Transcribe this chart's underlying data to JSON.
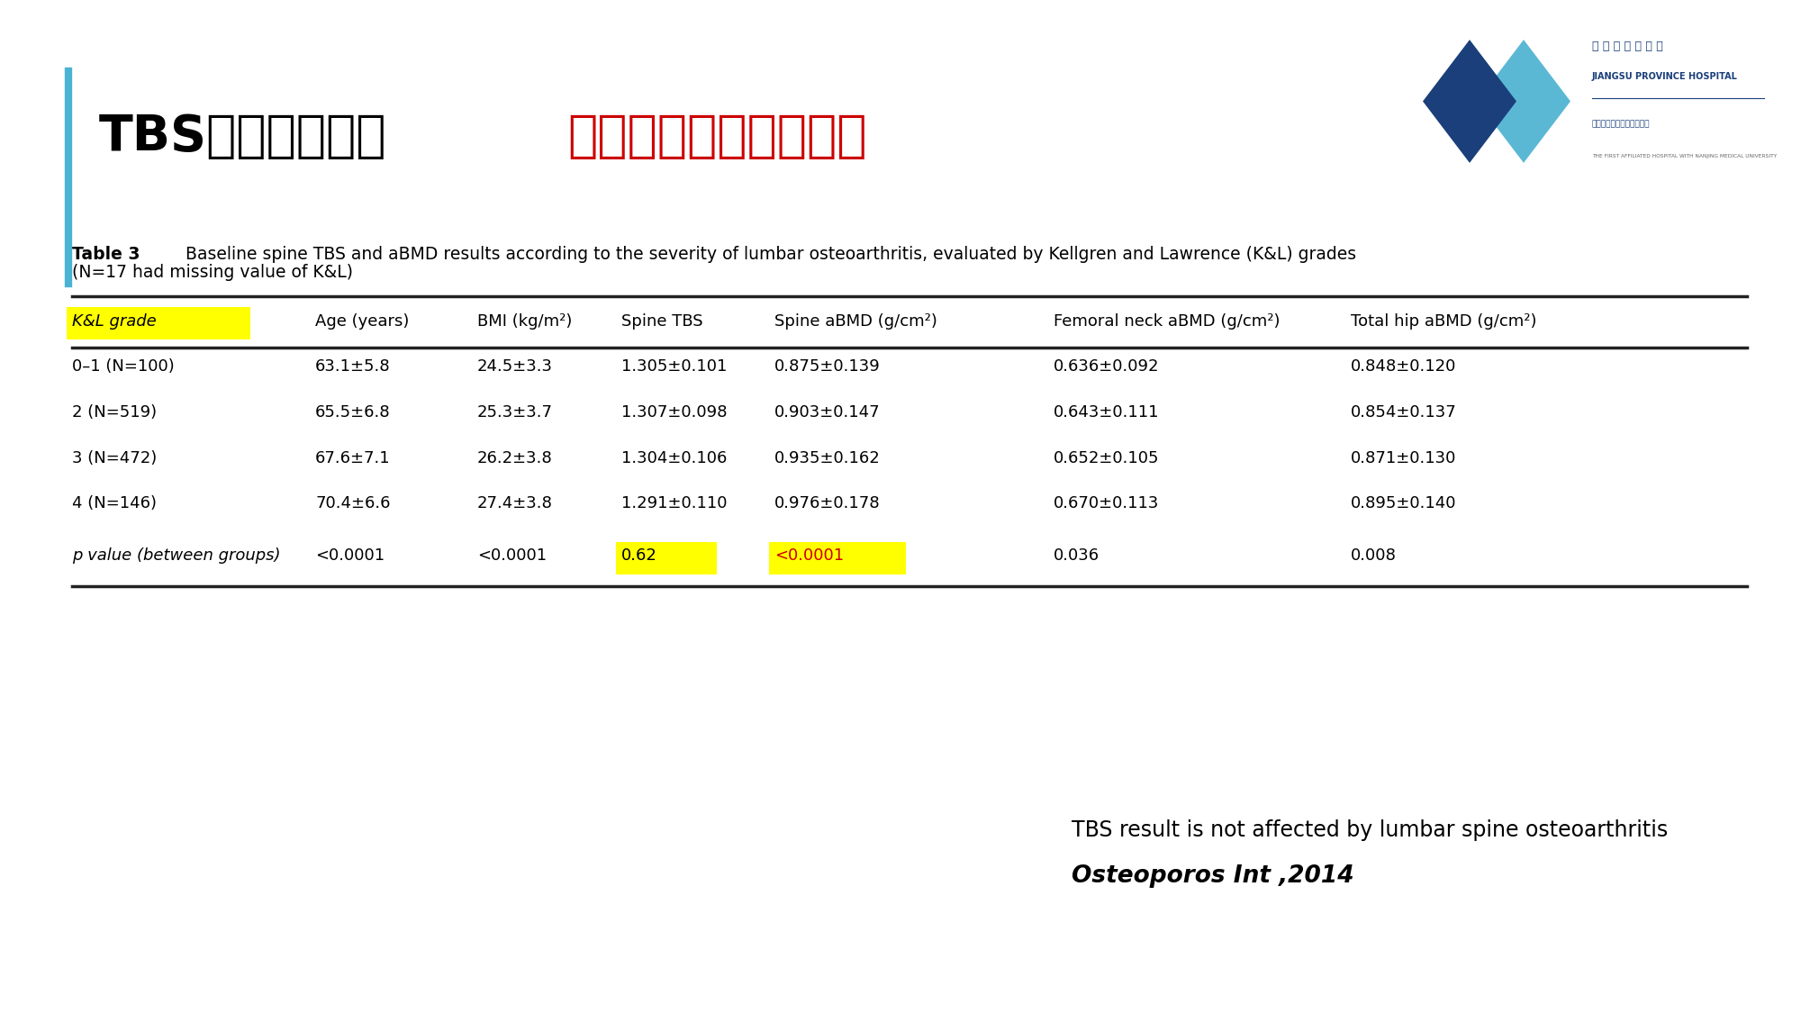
{
  "bg_color": "#ffffff",
  "title_black": "TBS的独特优势：",
  "title_red": "不受骨性关节炎的影响",
  "left_bar_color": "#4ab3d4",
  "table_caption_bold": "Table 3",
  "table_caption_normal": "  Baseline spine TBS and aBMD results according to the severity of lumbar osteoarthritis, evaluated by Kellgren and Lawrence (K&L) grades",
  "table_caption_line2": "(N=17 had missing value of K&L)",
  "col_headers": [
    "K&L grade",
    "Age (years)",
    "BMI (kg/m²)",
    "Spine TBS",
    "Spine aBMD (g/cm²)",
    "Femoral neck aBMD (g/cm²)",
    "Total hip aBMD (g/cm²)"
  ],
  "rows": [
    [
      "0–1 (N=100)",
      "63.1±5.8",
      "24.5±3.3",
      "1.305±0.101",
      "0.875±0.139",
      "0.636±0.092",
      "0.848±0.120"
    ],
    [
      "2 (N=519)",
      "65.5±6.8",
      "25.3±3.7",
      "1.307±0.098",
      "0.903±0.147",
      "0.643±0.111",
      "0.854±0.137"
    ],
    [
      "3 (N=472)",
      "67.6±7.1",
      "26.2±3.8",
      "1.304±0.106",
      "0.935±0.162",
      "0.652±0.105",
      "0.871±0.130"
    ],
    [
      "4 (N=146)",
      "70.4±6.6",
      "27.4±3.8",
      "1.291±0.110",
      "0.976±0.178",
      "0.670±0.113",
      "0.895±0.140"
    ],
    [
      "p value (between groups)",
      "<0.0001",
      "<0.0001",
      "0.62",
      "<0.0001",
      "0.036",
      "0.008"
    ]
  ],
  "highlight_header_color": "#ffff00",
  "highlight_pval_tbs_color": "#ffff00",
  "highlight_pval_spine_abmd_color": "#ffff00",
  "footnote_line1": "TBS result is not affected by lumbar spine osteoarthritis",
  "footnote_line2": "Osteoporos Int ,2014",
  "footnote_color": "#000000",
  "logo_dark_blue": "#1a3f7a",
  "logo_light_blue": "#5bb8d4",
  "title_red_color": "#cc0000",
  "table_line_color": "#222222"
}
